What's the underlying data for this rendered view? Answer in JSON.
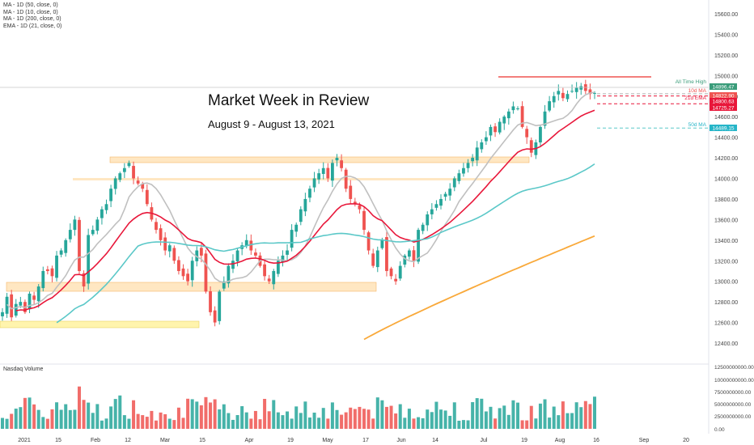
{
  "indicators": [
    "MA - 1D (50, close, 0)",
    "MA - 1D (10, close, 0)",
    "MA - 1D (200, close, 0)",
    "EMA - 1D (21, close, 0)"
  ],
  "title": "Market Week in Review",
  "subtitle": "August 9 - August 13, 2021",
  "volume_label": "Nasdaq Volume",
  "colors": {
    "up": "#26a69a",
    "down": "#ef5350",
    "ma10": "#c0c0c0",
    "ema21": "#e8173a",
    "ma50": "#5bc8c8",
    "ma200": "#f9a93a",
    "zone": "#ffd79a",
    "zone_yellow": "#fff08a",
    "ath_line": "#ef5350"
  },
  "chart_data": {
    "type": "candlestick",
    "price_axis": {
      "min": 12200,
      "max": 15700,
      "ticks": [
        "15600.00",
        "15400.00",
        "15200.00",
        "15000.00",
        "14800.00",
        "14600.00",
        "14400.00",
        "14200.00",
        "14000.00",
        "13800.00",
        "13600.00",
        "13400.00",
        "13200.00",
        "13000.00",
        "12800.00",
        "12600.00",
        "12400.00"
      ]
    },
    "volume_axis": {
      "ticks": [
        "12500000000.00",
        "10000000000.00",
        "7500000000.00",
        "5000000000.00",
        "2500000000.00",
        "0.00"
      ]
    },
    "x_ticks": [
      "2021",
      "15",
      "Feb",
      "12",
      "Mar",
      "15",
      "Apr",
      "19",
      "May",
      "17",
      "Jun",
      "14",
      "Jul",
      "19",
      "Aug",
      "16",
      "Sep",
      "20"
    ],
    "price_labels": [
      {
        "text": "All Time High",
        "value": "14896.47",
        "color": "#3a9c7a"
      },
      {
        "text": "10d MA",
        "value": "14822.90",
        "color": "#ef5350"
      },
      {
        "text": "21d EMA",
        "value": "14800.63",
        "color": "#e8173a"
      },
      {
        "text": "",
        "value": "14725.27",
        "color": "#e8173a"
      },
      {
        "text": "50d MA",
        "value": "14489.15",
        "color": "#26b5c8"
      }
    ],
    "closes": [
      12700,
      12850,
      12650,
      12780,
      12800,
      12700,
      12880,
      12820,
      12950,
      13100,
      13100,
      13050,
      13250,
      13300,
      13400,
      13500,
      13600,
      13100,
      12950,
      13450,
      13500,
      13600,
      13700,
      13750,
      13900,
      14000,
      14050,
      14100,
      14150,
      14000,
      13950,
      13900,
      13750,
      13600,
      13500,
      13400,
      13300,
      13350,
      13200,
      13100,
      13050,
      13000,
      13200,
      13300,
      13250,
      12900,
      12700,
      12600,
      12900,
      13000,
      13150,
      13200,
      13300,
      13350,
      13400,
      13300,
      13250,
      13150,
      13050,
      13000,
      13100,
      13200,
      13250,
      13300,
      13500,
      13550,
      13700,
      13800,
      13900,
      14000,
      14050,
      14100,
      14000,
      14150,
      14200,
      14100,
      13900,
      13800,
      13750,
      13700,
      13500,
      13300,
      13150,
      13300,
      13400,
      13100,
      13050,
      13000,
      13150,
      13250,
      13300,
      13200,
      13500,
      13550,
      13650,
      13700,
      13750,
      13800,
      13850,
      13900,
      14000,
      14050,
      14100,
      14150,
      14200,
      14300,
      14350,
      14400,
      14500,
      14450,
      14550,
      14600,
      14650,
      14700,
      14680,
      14500,
      14400,
      14250,
      14350,
      14500,
      14650,
      14750,
      14800,
      14850,
      14780,
      14820,
      14850,
      14880,
      14896,
      14850,
      14820,
      14830
    ]
  }
}
